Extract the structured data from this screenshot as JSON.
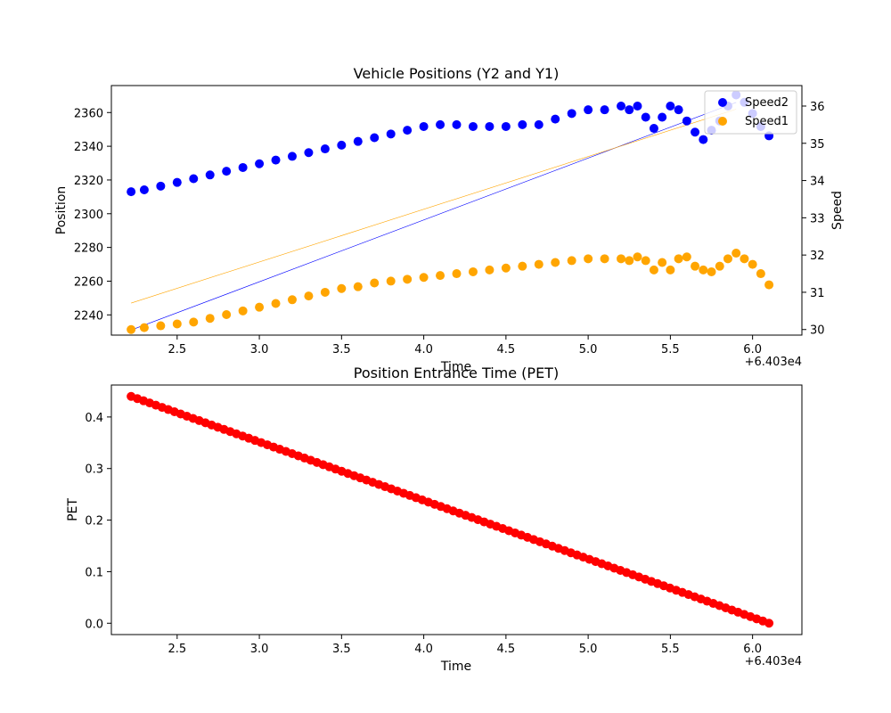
{
  "chart_data": [
    {
      "type": "scatter",
      "title": "Vehicle Positions (Y2 and Y1)",
      "xlabel": "Time",
      "ylabel": "Position",
      "y2label": "Speed",
      "x_offset_label": "+6.403e4",
      "x_ticks": [
        2.5,
        3.0,
        3.5,
        4.0,
        4.5,
        5.0,
        5.5,
        6.0
      ],
      "x_tick_labels": [
        "2.5",
        "3.0",
        "3.5",
        "4.0",
        "4.5",
        "5.0",
        "5.5",
        "6.0"
      ],
      "xlim": [
        2.1,
        6.3
      ],
      "y_ticks": [
        2240,
        2260,
        2280,
        2300,
        2320,
        2340,
        2360
      ],
      "y_tick_labels": [
        "2240",
        "2260",
        "2280",
        "2300",
        "2320",
        "2340",
        "2360"
      ],
      "ylim": [
        2228,
        2376
      ],
      "y2_ticks": [
        30,
        31,
        32,
        33,
        34,
        35,
        36
      ],
      "y2_tick_labels": [
        "30",
        "31",
        "32",
        "33",
        "34",
        "35",
        "36"
      ],
      "y2lim": [
        29.85,
        36.55
      ],
      "legend_position": "top-right",
      "series": [
        {
          "name": "Speed2",
          "axis": "right",
          "color": "#0000ff",
          "kind": "scatter",
          "x": [
            2.22,
            2.3,
            2.4,
            2.5,
            2.6,
            2.7,
            2.8,
            2.9,
            3.0,
            3.1,
            3.2,
            3.3,
            3.4,
            3.5,
            3.6,
            3.7,
            3.8,
            3.9,
            4.0,
            4.1,
            4.2,
            4.3,
            4.4,
            4.5,
            4.6,
            4.7,
            4.8,
            4.9,
            5.0,
            5.1,
            5.2,
            5.25,
            5.3,
            5.35,
            5.4,
            5.45,
            5.5,
            5.55,
            5.6,
            5.65,
            5.7,
            5.75,
            5.8,
            5.85,
            5.9,
            5.95,
            6.0,
            6.05,
            6.1
          ],
          "y": [
            33.7,
            33.75,
            33.85,
            33.95,
            34.05,
            34.15,
            34.25,
            34.35,
            34.45,
            34.55,
            34.65,
            34.75,
            34.85,
            34.95,
            35.05,
            35.15,
            35.25,
            35.35,
            35.45,
            35.5,
            35.5,
            35.45,
            35.45,
            35.45,
            35.5,
            35.5,
            35.65,
            35.8,
            35.9,
            35.9,
            36.0,
            35.9,
            36.0,
            35.7,
            35.4,
            35.7,
            36.0,
            35.9,
            35.6,
            35.3,
            35.1,
            35.35,
            35.6,
            36.0,
            36.3,
            36.1,
            35.8,
            35.45,
            35.2
          ]
        },
        {
          "name": "Speed1",
          "axis": "right",
          "color": "#ffa500",
          "kind": "scatter",
          "x": [
            2.22,
            2.3,
            2.4,
            2.5,
            2.6,
            2.7,
            2.8,
            2.9,
            3.0,
            3.1,
            3.2,
            3.3,
            3.4,
            3.5,
            3.6,
            3.7,
            3.8,
            3.9,
            4.0,
            4.1,
            4.2,
            4.3,
            4.4,
            4.5,
            4.6,
            4.7,
            4.8,
            4.9,
            5.0,
            5.1,
            5.2,
            5.25,
            5.3,
            5.35,
            5.4,
            5.45,
            5.5,
            5.55,
            5.6,
            5.65,
            5.7,
            5.75,
            5.8,
            5.85,
            5.9,
            5.95,
            6.0,
            6.05,
            6.1
          ],
          "y": [
            30.0,
            30.05,
            30.1,
            30.15,
            30.2,
            30.3,
            30.4,
            30.5,
            30.6,
            30.7,
            30.8,
            30.9,
            31.0,
            31.1,
            31.15,
            31.25,
            31.3,
            31.35,
            31.4,
            31.45,
            31.5,
            31.55,
            31.6,
            31.65,
            31.7,
            31.75,
            31.8,
            31.85,
            31.9,
            31.9,
            31.9,
            31.85,
            31.95,
            31.85,
            31.6,
            31.8,
            31.6,
            31.9,
            31.95,
            31.7,
            31.6,
            31.55,
            31.7,
            31.9,
            32.05,
            31.9,
            31.75,
            31.5,
            31.2
          ]
        },
        {
          "name": "",
          "axis": "left",
          "color": "#0000ff",
          "kind": "line",
          "x": [
            2.22,
            5.9
          ],
          "y": [
            2231,
            2366
          ]
        },
        {
          "name": "",
          "axis": "left",
          "color": "#ffa500",
          "kind": "line",
          "x": [
            2.22,
            5.9
          ],
          "y": [
            2247,
            2362
          ]
        }
      ]
    },
    {
      "type": "scatter",
      "title": "Position Entrance Time (PET)",
      "xlabel": "Time",
      "ylabel": "PET",
      "x_offset_label": "+6.403e4",
      "x_ticks": [
        2.5,
        3.0,
        3.5,
        4.0,
        4.5,
        5.0,
        5.5,
        6.0
      ],
      "x_tick_labels": [
        "2.5",
        "3.0",
        "3.5",
        "4.0",
        "4.5",
        "5.0",
        "5.5",
        "6.0"
      ],
      "xlim": [
        2.1,
        6.3
      ],
      "y_ticks": [
        0.0,
        0.1,
        0.2,
        0.3,
        0.4
      ],
      "y_tick_labels": [
        "0.0",
        "0.1",
        "0.2",
        "0.3",
        "0.4"
      ],
      "ylim": [
        -0.022,
        0.462
      ],
      "series": [
        {
          "name": "",
          "color": "#ff0000",
          "kind": "scatter",
          "x_start": 2.22,
          "x_end": 6.1,
          "y_start": 0.44,
          "y_end": 0.0,
          "count": 104
        }
      ]
    }
  ]
}
